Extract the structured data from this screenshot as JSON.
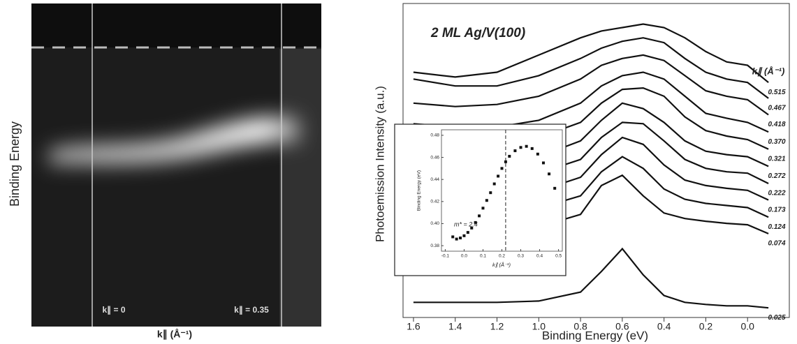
{
  "chart_data": [
    {
      "type": "image",
      "ylabel": "Binding Energy",
      "xlabel": "k∥ (Å⁻¹)",
      "annotations": [
        "k∥ = 0",
        "k∥ = 0.35"
      ]
    },
    {
      "type": "line",
      "title": "2 ML Ag/V(100)",
      "xlabel": "Binding Energy (eV)",
      "ylabel": "Photoemission Intensity (a.u.)",
      "legend_title": "k∥ (Å⁻¹)",
      "color": "#111111",
      "xlim": [
        1.65,
        -0.2
      ],
      "xticks": [
        1.6,
        1.4,
        1.2,
        {
          "value": 1,
          "label": "1.0"
        },
        0.8,
        0.6,
        0.4,
        0.2,
        {
          "value": 0,
          "label": "0.0"
        }
      ],
      "ylim": [
        0,
        457
      ],
      "x": [
        1.6,
        1.4,
        1.2,
        1.0,
        0.8,
        0.7,
        0.6,
        0.5,
        0.4,
        0.3,
        0.2,
        0.1,
        0.0,
        -0.1
      ],
      "series": [
        {
          "name": "0.515",
          "values": [
            357,
            350,
            357,
            382,
            407,
            417,
            422,
            427,
            422,
            407,
            387,
            372,
            367,
            342
          ]
        },
        {
          "name": "0.467",
          "values": [
            347,
            337,
            337,
            352,
            377,
            392,
            402,
            407,
            400,
            377,
            357,
            347,
            342,
            319
          ]
        },
        {
          "name": "0.418",
          "values": [
            312,
            307,
            310,
            322,
            347,
            367,
            377,
            382,
            374,
            352,
            330,
            322,
            317,
            295
          ]
        },
        {
          "name": "0.370",
          "values": [
            282,
            277,
            277,
            287,
            312,
            337,
            352,
            357,
            347,
            322,
            297,
            290,
            284,
            270
          ]
        },
        {
          "name": "0.321",
          "values": [
            257,
            252,
            252,
            262,
            284,
            312,
            332,
            334,
            322,
            292,
            272,
            264,
            259,
            245
          ]
        },
        {
          "name": "0.272",
          "values": [
            232,
            227,
            227,
            234,
            257,
            287,
            312,
            304,
            284,
            257,
            242,
            237,
            234,
            220
          ]
        },
        {
          "name": "0.222",
          "values": [
            207,
            202,
            202,
            210,
            230,
            262,
            284,
            282,
            257,
            230,
            217,
            212,
            210,
            195
          ]
        },
        {
          "name": "0.173",
          "values": [
            182,
            177,
            177,
            184,
            204,
            237,
            262,
            252,
            222,
            200,
            192,
            188,
            185,
            171
          ]
        },
        {
          "name": "0.124",
          "values": [
            157,
            152,
            152,
            159,
            177,
            212,
            234,
            217,
            187,
            172,
            166,
            163,
            160,
            146
          ]
        },
        {
          "name": "0.074",
          "values": [
            132,
            127,
            127,
            132,
            150,
            192,
            207,
            177,
            152,
            144,
            140,
            137,
            135,
            122
          ]
        },
        {
          "name": "0.025",
          "values": [
            22,
            22,
            22,
            24,
            37,
            67,
            100,
            62,
            32,
            22,
            19,
            17,
            17,
            14
          ]
        }
      ]
    },
    {
      "type": "scatter",
      "xlabel": "k∥ (Å⁻¹)",
      "ylabel": "Binding Energy (eV)",
      "annotation": "m* = 2.4",
      "color": "#111111",
      "xlim": [
        -0.12,
        0.52
      ],
      "ylim": [
        0.375,
        0.485
      ],
      "xticks": [
        -0.1,
        {
          "value": 0,
          "label": "0.0"
        },
        0.1,
        0.2,
        0.3,
        0.4,
        0.5
      ],
      "yticks": [
        0.38,
        {
          "value": 0.4,
          "label": "0.40"
        },
        0.42,
        0.44,
        0.46,
        0.48
      ],
      "vline": 0.22,
      "x": [
        -0.06,
        -0.04,
        -0.02,
        0.0,
        0.02,
        0.04,
        0.06,
        0.08,
        0.1,
        0.12,
        0.14,
        0.16,
        0.18,
        0.2,
        0.22,
        0.24,
        0.27,
        0.3,
        0.33,
        0.36,
        0.39,
        0.42,
        0.45,
        0.48
      ],
      "values": [
        0.388,
        0.386,
        0.387,
        0.389,
        0.392,
        0.396,
        0.401,
        0.407,
        0.414,
        0.421,
        0.428,
        0.436,
        0.443,
        0.45,
        0.456,
        0.461,
        0.466,
        0.469,
        0.47,
        0.468,
        0.463,
        0.455,
        0.445,
        0.432
      ]
    }
  ]
}
